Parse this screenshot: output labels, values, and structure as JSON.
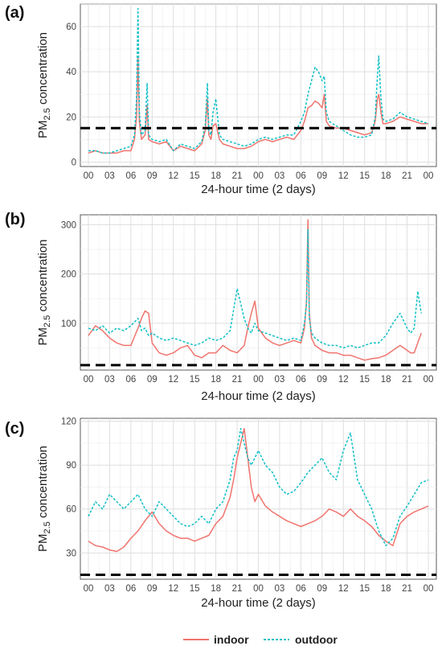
{
  "legend": {
    "items": [
      {
        "label": "indoor",
        "color": "#F0746E",
        "dash": "solid"
      },
      {
        "label": "outdoor",
        "color": "#12C0C8",
        "dash": "dotted"
      }
    ]
  },
  "chart_data": [
    {
      "type": "line",
      "panel_label": "(a)",
      "ylabel_main": "PM",
      "ylabel_sub": "2.5",
      "ylabel_rest": " concentration",
      "xlabel": "24-hour time (2 days)",
      "x_ticks": [
        "00",
        "03",
        "06",
        "09",
        "12",
        "15",
        "18",
        "21",
        "00",
        "03",
        "06",
        "09",
        "12",
        "15",
        "18",
        "21",
        "00"
      ],
      "xlim": [
        0,
        48
      ],
      "ylim": [
        -2,
        70
      ],
      "y_ticks": [
        0,
        20,
        40,
        60
      ],
      "threshold": 15,
      "grid": true,
      "series": [
        {
          "name": "indoor",
          "color": "#F0746E",
          "x": [
            0,
            1,
            2,
            3,
            4,
            5,
            6,
            6.5,
            6.8,
            7,
            7.2,
            7.5,
            8,
            8.3,
            8.5,
            9,
            10,
            11,
            12,
            13,
            14,
            15,
            16,
            16.5,
            16.8,
            17,
            17.3,
            17.6,
            18,
            18.5,
            19,
            20,
            21,
            22,
            23,
            24,
            25,
            26,
            27,
            28,
            29,
            30,
            30.5,
            31,
            31.5,
            32,
            32.5,
            33,
            33.3,
            33.6,
            34,
            35,
            36,
            37,
            38,
            39,
            40,
            40.5,
            40.8,
            41,
            41.3,
            41.6,
            42,
            43,
            44,
            45,
            46,
            47,
            48
          ],
          "y": [
            4,
            5,
            4,
            4,
            4,
            5,
            5,
            10,
            20,
            46,
            18,
            10,
            12,
            25,
            10,
            9,
            8,
            9,
            5,
            7,
            6,
            5,
            8,
            14,
            28,
            12,
            10,
            16,
            17,
            10,
            8,
            7,
            6,
            6,
            7,
            9,
            10,
            9,
            10,
            11,
            10,
            14,
            18,
            24,
            25,
            27,
            26,
            24,
            30,
            18,
            16,
            15,
            15,
            14,
            13,
            12,
            13,
            18,
            28,
            30,
            22,
            17,
            17,
            18,
            20,
            19,
            18,
            17,
            17
          ]
        },
        {
          "name": "outdoor",
          "color": "#12C0C8",
          "x": [
            0,
            1,
            2,
            3,
            4,
            5,
            6,
            6.5,
            6.8,
            7,
            7.2,
            7.5,
            8,
            8.3,
            8.5,
            9,
            10,
            11,
            12,
            13,
            14,
            15,
            16,
            16.5,
            16.8,
            17,
            17.3,
            17.6,
            18,
            18.5,
            19,
            20,
            21,
            22,
            23,
            24,
            25,
            26,
            27,
            28,
            29,
            30,
            30.5,
            31,
            31.5,
            32,
            32.5,
            33,
            33.3,
            33.6,
            34,
            35,
            36,
            37,
            38,
            39,
            40,
            40.5,
            40.8,
            41,
            41.3,
            41.6,
            42,
            43,
            44,
            45,
            46,
            47,
            48
          ],
          "y": [
            5,
            5,
            4,
            4,
            5,
            6,
            7,
            12,
            28,
            68,
            22,
            12,
            14,
            35,
            12,
            10,
            9,
            10,
            5,
            8,
            7,
            6,
            9,
            16,
            35,
            14,
            12,
            22,
            28,
            12,
            10,
            9,
            8,
            7,
            8,
            10,
            11,
            10,
            11,
            12,
            12,
            18,
            22,
            30,
            36,
            42,
            40,
            36,
            38,
            22,
            18,
            16,
            14,
            12,
            11,
            11,
            12,
            20,
            38,
            47,
            28,
            19,
            18,
            19,
            22,
            20,
            19,
            18,
            17
          ]
        }
      ]
    },
    {
      "type": "line",
      "panel_label": "(b)",
      "ylabel_main": "PM",
      "ylabel_sub": "2.5",
      "ylabel_rest": " concentration",
      "xlabel": "24-hour time (2 days)",
      "x_ticks": [
        "00",
        "03",
        "06",
        "09",
        "12",
        "15",
        "18",
        "21",
        "00",
        "03",
        "06",
        "09",
        "12",
        "15",
        "18",
        "21",
        "00"
      ],
      "xlim": [
        0,
        48
      ],
      "ylim": [
        5,
        320
      ],
      "y_ticks": [
        100,
        200,
        300
      ],
      "threshold": 15,
      "grid": true,
      "series": [
        {
          "name": "indoor",
          "color": "#F0746E",
          "x": [
            0,
            1,
            2,
            3,
            4,
            5,
            6,
            7,
            7.5,
            8,
            8.5,
            9,
            10,
            11,
            12,
            13,
            14,
            15,
            16,
            17,
            18,
            19,
            20,
            21,
            22,
            22.5,
            23,
            23.5,
            24,
            25,
            26,
            27,
            28,
            29,
            30,
            30.5,
            30.8,
            31,
            31.2,
            31.5,
            32,
            33,
            34,
            35,
            36,
            37,
            38,
            39,
            40,
            41,
            42,
            43,
            44,
            45,
            45.5,
            46,
            46.5,
            47
          ],
          "y": [
            75,
            95,
            85,
            70,
            60,
            55,
            55,
            90,
            110,
            125,
            120,
            60,
            40,
            35,
            40,
            50,
            55,
            35,
            30,
            40,
            40,
            55,
            45,
            40,
            55,
            90,
            120,
            145,
            90,
            70,
            60,
            55,
            60,
            65,
            60,
            90,
            145,
            310,
            120,
            70,
            55,
            45,
            40,
            40,
            35,
            35,
            30,
            25,
            28,
            30,
            35,
            45,
            55,
            45,
            40,
            40,
            60,
            80
          ]
        },
        {
          "name": "outdoor",
          "color": "#12C0C8",
          "x": [
            0,
            1,
            2,
            3,
            4,
            5,
            6,
            7,
            7.5,
            8,
            8.5,
            9,
            10,
            11,
            12,
            13,
            14,
            15,
            16,
            17,
            18,
            19,
            20,
            21,
            22,
            22.5,
            23,
            23.5,
            24,
            25,
            26,
            27,
            28,
            29,
            30,
            30.5,
            30.8,
            31,
            31.2,
            31.5,
            32,
            33,
            34,
            35,
            36,
            37,
            38,
            39,
            40,
            41,
            42,
            43,
            44,
            45,
            45.5,
            46,
            46.5,
            47
          ],
          "y": [
            90,
            85,
            95,
            80,
            90,
            85,
            95,
            110,
            85,
            90,
            75,
            80,
            70,
            65,
            70,
            65,
            60,
            55,
            60,
            70,
            65,
            70,
            85,
            170,
            110,
            90,
            80,
            100,
            85,
            80,
            75,
            70,
            65,
            70,
            65,
            100,
            140,
            290,
            110,
            80,
            70,
            60,
            55,
            55,
            50,
            55,
            50,
            55,
            60,
            60,
            75,
            100,
            120,
            90,
            80,
            90,
            165,
            120
          ]
        }
      ]
    },
    {
      "type": "line",
      "panel_label": "(c)",
      "ylabel_main": "PM",
      "ylabel_sub": "2.5",
      "ylabel_rest": " concentration",
      "xlabel": "24-hour time (2 days)",
      "x_ticks": [
        "00",
        "03",
        "06",
        "09",
        "12",
        "15",
        "18",
        "21",
        "00",
        "03",
        "06",
        "09",
        "12",
        "15",
        "18",
        "21",
        "00"
      ],
      "xlim": [
        0,
        48
      ],
      "ylim": [
        12,
        122
      ],
      "y_ticks": [
        30,
        60,
        90,
        120
      ],
      "threshold": 15,
      "grid": true,
      "series": [
        {
          "name": "indoor",
          "color": "#F0746E",
          "x": [
            0,
            1,
            2,
            3,
            4,
            5,
            6,
            7,
            8,
            9,
            10,
            11,
            12,
            13,
            14,
            15,
            16,
            17,
            18,
            19,
            20,
            20.5,
            21,
            21.5,
            22,
            22.5,
            23,
            23.5,
            24,
            25,
            26,
            27,
            28,
            29,
            30,
            31,
            32,
            33,
            34,
            35,
            36,
            37,
            38,
            39,
            40,
            41,
            42,
            43,
            44,
            45,
            46,
            47,
            48
          ],
          "y": [
            38,
            35,
            34,
            32,
            31,
            34,
            40,
            45,
            52,
            58,
            50,
            45,
            42,
            40,
            40,
            38,
            40,
            42,
            50,
            55,
            68,
            80,
            95,
            105,
            115,
            95,
            75,
            65,
            70,
            62,
            58,
            55,
            52,
            50,
            48,
            50,
            52,
            55,
            60,
            58,
            55,
            60,
            55,
            52,
            48,
            42,
            38,
            35,
            50,
            55,
            58,
            60,
            62
          ]
        },
        {
          "name": "outdoor",
          "color": "#12C0C8",
          "x": [
            0,
            1,
            2,
            3,
            4,
            5,
            6,
            7,
            8,
            9,
            10,
            11,
            12,
            13,
            14,
            15,
            16,
            17,
            18,
            19,
            20,
            20.5,
            21,
            21.5,
            22,
            22.5,
            23,
            23.5,
            24,
            25,
            26,
            27,
            28,
            29,
            30,
            31,
            32,
            33,
            34,
            35,
            36,
            37,
            38,
            39,
            40,
            41,
            42,
            43,
            44,
            45,
            46,
            47,
            48
          ],
          "y": [
            55,
            65,
            60,
            70,
            65,
            60,
            65,
            70,
            60,
            55,
            65,
            60,
            55,
            50,
            48,
            50,
            55,
            50,
            60,
            65,
            80,
            95,
            100,
            115,
            105,
            95,
            90,
            95,
            100,
            90,
            85,
            75,
            70,
            72,
            78,
            85,
            90,
            95,
            85,
            80,
            100,
            112,
            80,
            70,
            60,
            45,
            35,
            40,
            55,
            62,
            70,
            78,
            80
          ]
        }
      ]
    }
  ]
}
